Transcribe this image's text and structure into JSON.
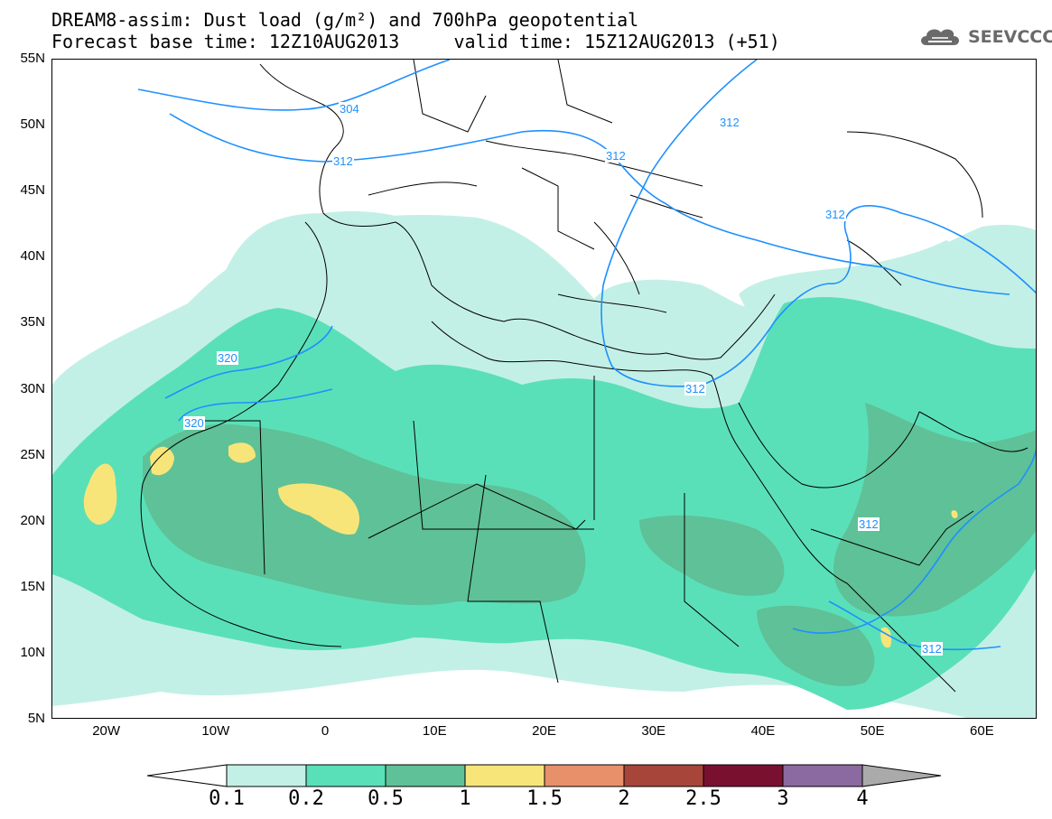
{
  "header": {
    "title_line1": "DREAM8-assim: Dust load (g/m²) and 700hPa geopotential",
    "title_line2": "Forecast base time: 12Z10AUG2013     valid time: 15Z12AUG2013 (+51)"
  },
  "logo": {
    "text": "SEEVCCC",
    "icon": "cloud-logo-icon",
    "color": "#6a6a6a"
  },
  "axes": {
    "lat_labels": [
      "55N",
      "50N",
      "45N",
      "40N",
      "35N",
      "30N",
      "25N",
      "20N",
      "15N",
      "10N",
      "5N"
    ],
    "lon_labels": [
      "20W",
      "10W",
      "0",
      "10E",
      "20E",
      "30E",
      "40E",
      "50E",
      "60E"
    ],
    "lon_range": [
      -25,
      65
    ],
    "lat_range": [
      5,
      55
    ]
  },
  "contours": {
    "color": "#1e90ff",
    "labels": [
      "304",
      "312",
      "312",
      "312",
      "312",
      "320",
      "320",
      "312",
      "312",
      "312"
    ]
  },
  "legend": {
    "labels": [
      "0.1",
      "0.2",
      "0.5",
      "1",
      "1.5",
      "2",
      "2.5",
      "3",
      "4"
    ],
    "colors": [
      "#c3f0e6",
      "#5ae0b8",
      "#5fc197",
      "#f7e57a",
      "#e8906a",
      "#a8453a",
      "#7a1030",
      "#8a6aa0"
    ],
    "under_color": "#ffffff",
    "over_color": "#aaaaaa"
  }
}
